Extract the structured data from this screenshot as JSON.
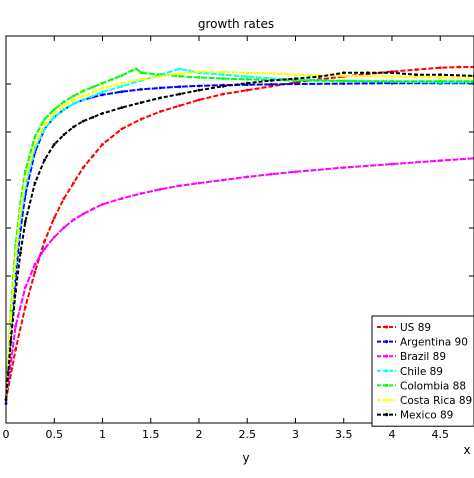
{
  "chart_data": {
    "type": "line",
    "title": "growth rates",
    "xlabel": "y",
    "xlabel_partial": "x",
    "xlim": [
      0,
      4.85
    ],
    "ylim": [
      0,
      1
    ],
    "xticks": [
      0,
      0.5,
      1,
      1.5,
      2,
      2.5,
      3,
      3.5,
      4,
      4.5
    ],
    "xtick_labels": [
      "0",
      "0.5",
      "1",
      "1.5",
      "2",
      "2.5",
      "3",
      "3.5",
      "4",
      "4.5"
    ],
    "grid": false,
    "legend_position": "bottom-right",
    "series": [
      {
        "name": "US 89",
        "color": "#ff0000",
        "x": [
          0,
          0.1,
          0.2,
          0.3,
          0.4,
          0.5,
          0.6,
          0.7,
          0.8,
          0.9,
          1.0,
          1.2,
          1.4,
          1.6,
          1.8,
          2.0,
          2.25,
          2.5,
          2.75,
          3.0,
          3.25,
          3.5,
          3.75,
          4.0,
          4.25,
          4.5,
          4.7,
          4.85
        ],
        "y": [
          0.06,
          0.19,
          0.3,
          0.39,
          0.47,
          0.53,
          0.58,
          0.62,
          0.66,
          0.69,
          0.72,
          0.76,
          0.785,
          0.805,
          0.82,
          0.835,
          0.85,
          0.86,
          0.87,
          0.88,
          0.888,
          0.895,
          0.902,
          0.908,
          0.913,
          0.918,
          0.92,
          0.92
        ]
      },
      {
        "name": "Argentina 90",
        "color": "#0000ff",
        "x": [
          0,
          0.05,
          0.1,
          0.15,
          0.2,
          0.3,
          0.4,
          0.5,
          0.6,
          0.7,
          0.8,
          0.9,
          1.0,
          1.2,
          1.4,
          1.6,
          1.8,
          2.0,
          2.25,
          2.5,
          2.75,
          3.0,
          3.5,
          4.0,
          4.5,
          4.85
        ],
        "y": [
          0.05,
          0.23,
          0.38,
          0.5,
          0.59,
          0.7,
          0.76,
          0.79,
          0.81,
          0.825,
          0.835,
          0.842,
          0.848,
          0.856,
          0.862,
          0.866,
          0.869,
          0.871,
          0.873,
          0.874,
          0.875,
          0.876,
          0.877,
          0.878,
          0.878,
          0.878
        ]
      },
      {
        "name": "Brazil 89",
        "color": "#ff00ff",
        "x": [
          0,
          0.1,
          0.2,
          0.3,
          0.4,
          0.5,
          0.6,
          0.7,
          0.8,
          0.9,
          1.0,
          1.2,
          1.4,
          1.6,
          1.8,
          2.0,
          2.25,
          2.5,
          2.75,
          3.0,
          3.5,
          4.0,
          4.5,
          4.85
        ],
        "y": [
          0.06,
          0.25,
          0.35,
          0.41,
          0.45,
          0.48,
          0.505,
          0.525,
          0.54,
          0.553,
          0.565,
          0.58,
          0.593,
          0.604,
          0.613,
          0.62,
          0.628,
          0.636,
          0.643,
          0.649,
          0.66,
          0.669,
          0.678,
          0.684
        ]
      },
      {
        "name": "Chile 89",
        "color": "#00ffff",
        "x": [
          0,
          0.05,
          0.1,
          0.15,
          0.2,
          0.3,
          0.4,
          0.5,
          0.6,
          0.7,
          0.8,
          0.9,
          1.0,
          1.2,
          1.4,
          1.6,
          1.8,
          1.9,
          2.0,
          2.25,
          2.5,
          2.75,
          3.0,
          3.5,
          4.0,
          4.5,
          4.85
        ],
        "y": [
          0.06,
          0.26,
          0.41,
          0.53,
          0.61,
          0.71,
          0.76,
          0.79,
          0.81,
          0.825,
          0.835,
          0.845,
          0.855,
          0.87,
          0.885,
          0.9,
          0.915,
          0.91,
          0.905,
          0.9,
          0.895,
          0.89,
          0.887,
          0.884,
          0.882,
          0.88,
          0.88
        ]
      },
      {
        "name": "Colombia 88",
        "color": "#00ff00",
        "x": [
          0,
          0.05,
          0.1,
          0.15,
          0.2,
          0.3,
          0.4,
          0.5,
          0.6,
          0.7,
          0.8,
          0.9,
          1.0,
          1.1,
          1.2,
          1.3,
          1.35,
          1.4,
          1.6,
          1.8,
          2.0,
          2.25,
          2.5,
          2.75,
          3.0,
          3.5,
          4.0,
          4.5,
          4.85
        ],
        "y": [
          0.06,
          0.29,
          0.46,
          0.57,
          0.65,
          0.74,
          0.785,
          0.81,
          0.83,
          0.845,
          0.858,
          0.868,
          0.878,
          0.888,
          0.898,
          0.91,
          0.915,
          0.905,
          0.9,
          0.896,
          0.893,
          0.89,
          0.888,
          0.886,
          0.885,
          0.884,
          0.883,
          0.883,
          0.883
        ]
      },
      {
        "name": "Costa Rica 89",
        "color": "#ffff00",
        "x": [
          0,
          0.05,
          0.1,
          0.15,
          0.2,
          0.3,
          0.4,
          0.5,
          0.6,
          0.7,
          0.8,
          0.9,
          1.0,
          1.2,
          1.4,
          1.6,
          1.8,
          2.0,
          2.25,
          2.5,
          2.75,
          3.0,
          3.5,
          4.0,
          4.5,
          4.85
        ],
        "y": [
          0.06,
          0.27,
          0.43,
          0.55,
          0.63,
          0.72,
          0.77,
          0.8,
          0.82,
          0.835,
          0.845,
          0.855,
          0.865,
          0.878,
          0.888,
          0.896,
          0.903,
          0.908,
          0.907,
          0.905,
          0.903,
          0.9,
          0.897,
          0.895,
          0.893,
          0.892
        ]
      },
      {
        "name": "Mexico 89",
        "color": "#000000",
        "x": [
          0,
          0.05,
          0.1,
          0.15,
          0.2,
          0.3,
          0.4,
          0.5,
          0.6,
          0.7,
          0.8,
          0.9,
          1.0,
          1.2,
          1.4,
          1.6,
          1.8,
          2.0,
          2.25,
          2.5,
          2.75,
          3.0,
          3.25,
          3.5,
          3.75,
          4.0,
          4.25,
          4.5,
          4.85
        ],
        "y": [
          0.06,
          0.21,
          0.34,
          0.44,
          0.52,
          0.62,
          0.68,
          0.72,
          0.745,
          0.765,
          0.78,
          0.79,
          0.8,
          0.815,
          0.828,
          0.84,
          0.85,
          0.86,
          0.87,
          0.878,
          0.885,
          0.89,
          0.895,
          0.905,
          0.905,
          0.905,
          0.9,
          0.9,
          0.897
        ]
      }
    ]
  }
}
